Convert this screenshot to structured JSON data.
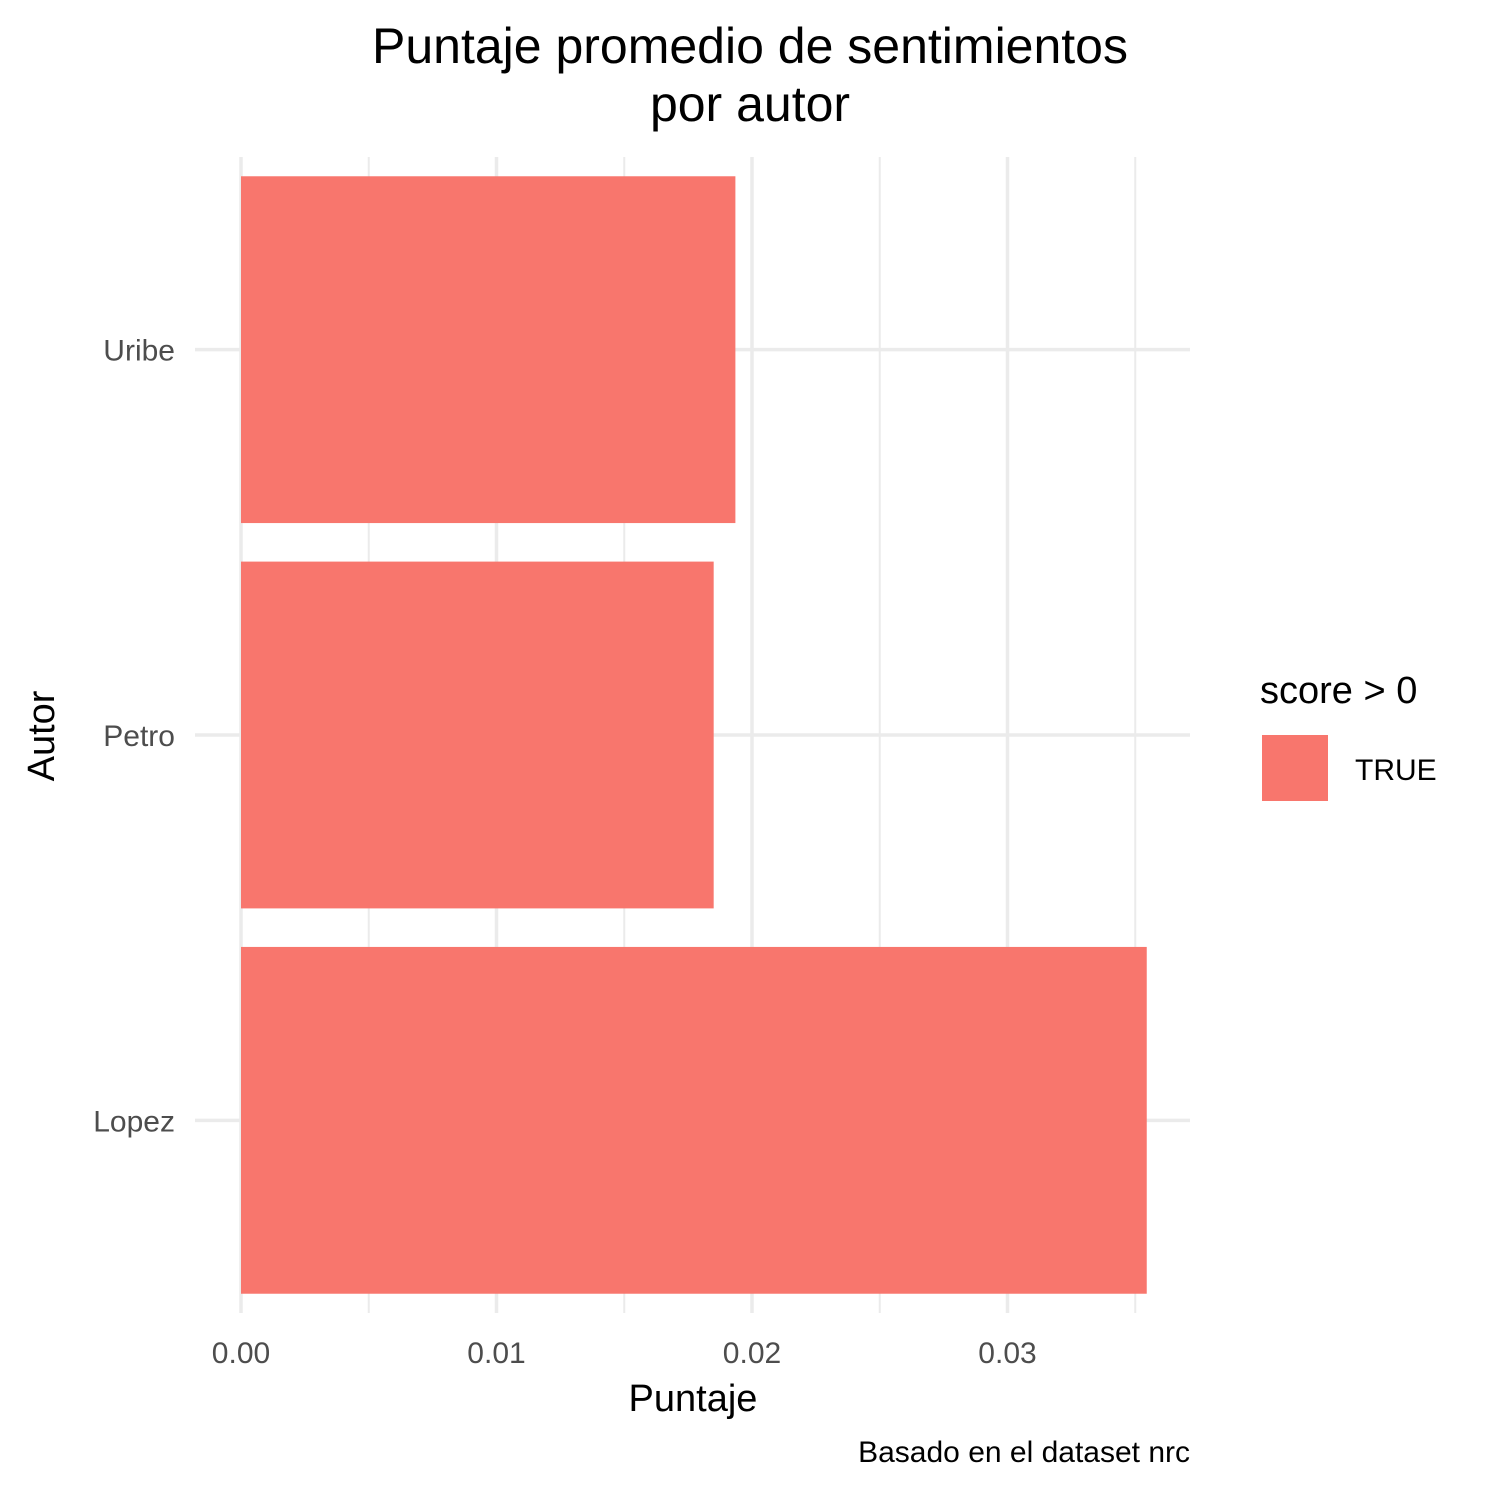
{
  "chart_data": {
    "type": "bar",
    "orientation": "horizontal",
    "title_lines": [
      "Puntaje promedio de sentimientos",
      "por autor"
    ],
    "xlabel": "Puntaje",
    "ylabel": "Autor",
    "caption": "Basado en el dataset nrc",
    "categories": [
      "Uribe",
      "Petro",
      "Lopez"
    ],
    "series": [
      {
        "name": "TRUE",
        "values": [
          0.01935,
          0.0185,
          0.03545
        ],
        "color": "#F8766D"
      }
    ],
    "xlim": [
      0,
      0.0372
    ],
    "x_ticks": [
      0.0,
      0.01,
      0.02,
      0.03
    ],
    "x_tick_labels": [
      "0.00",
      "0.01",
      "0.02",
      "0.03"
    ],
    "grid": true,
    "legend": {
      "title": "score > 0",
      "placement": "right",
      "entries": [
        {
          "label": "TRUE",
          "color": "#F8766D"
        }
      ]
    }
  }
}
